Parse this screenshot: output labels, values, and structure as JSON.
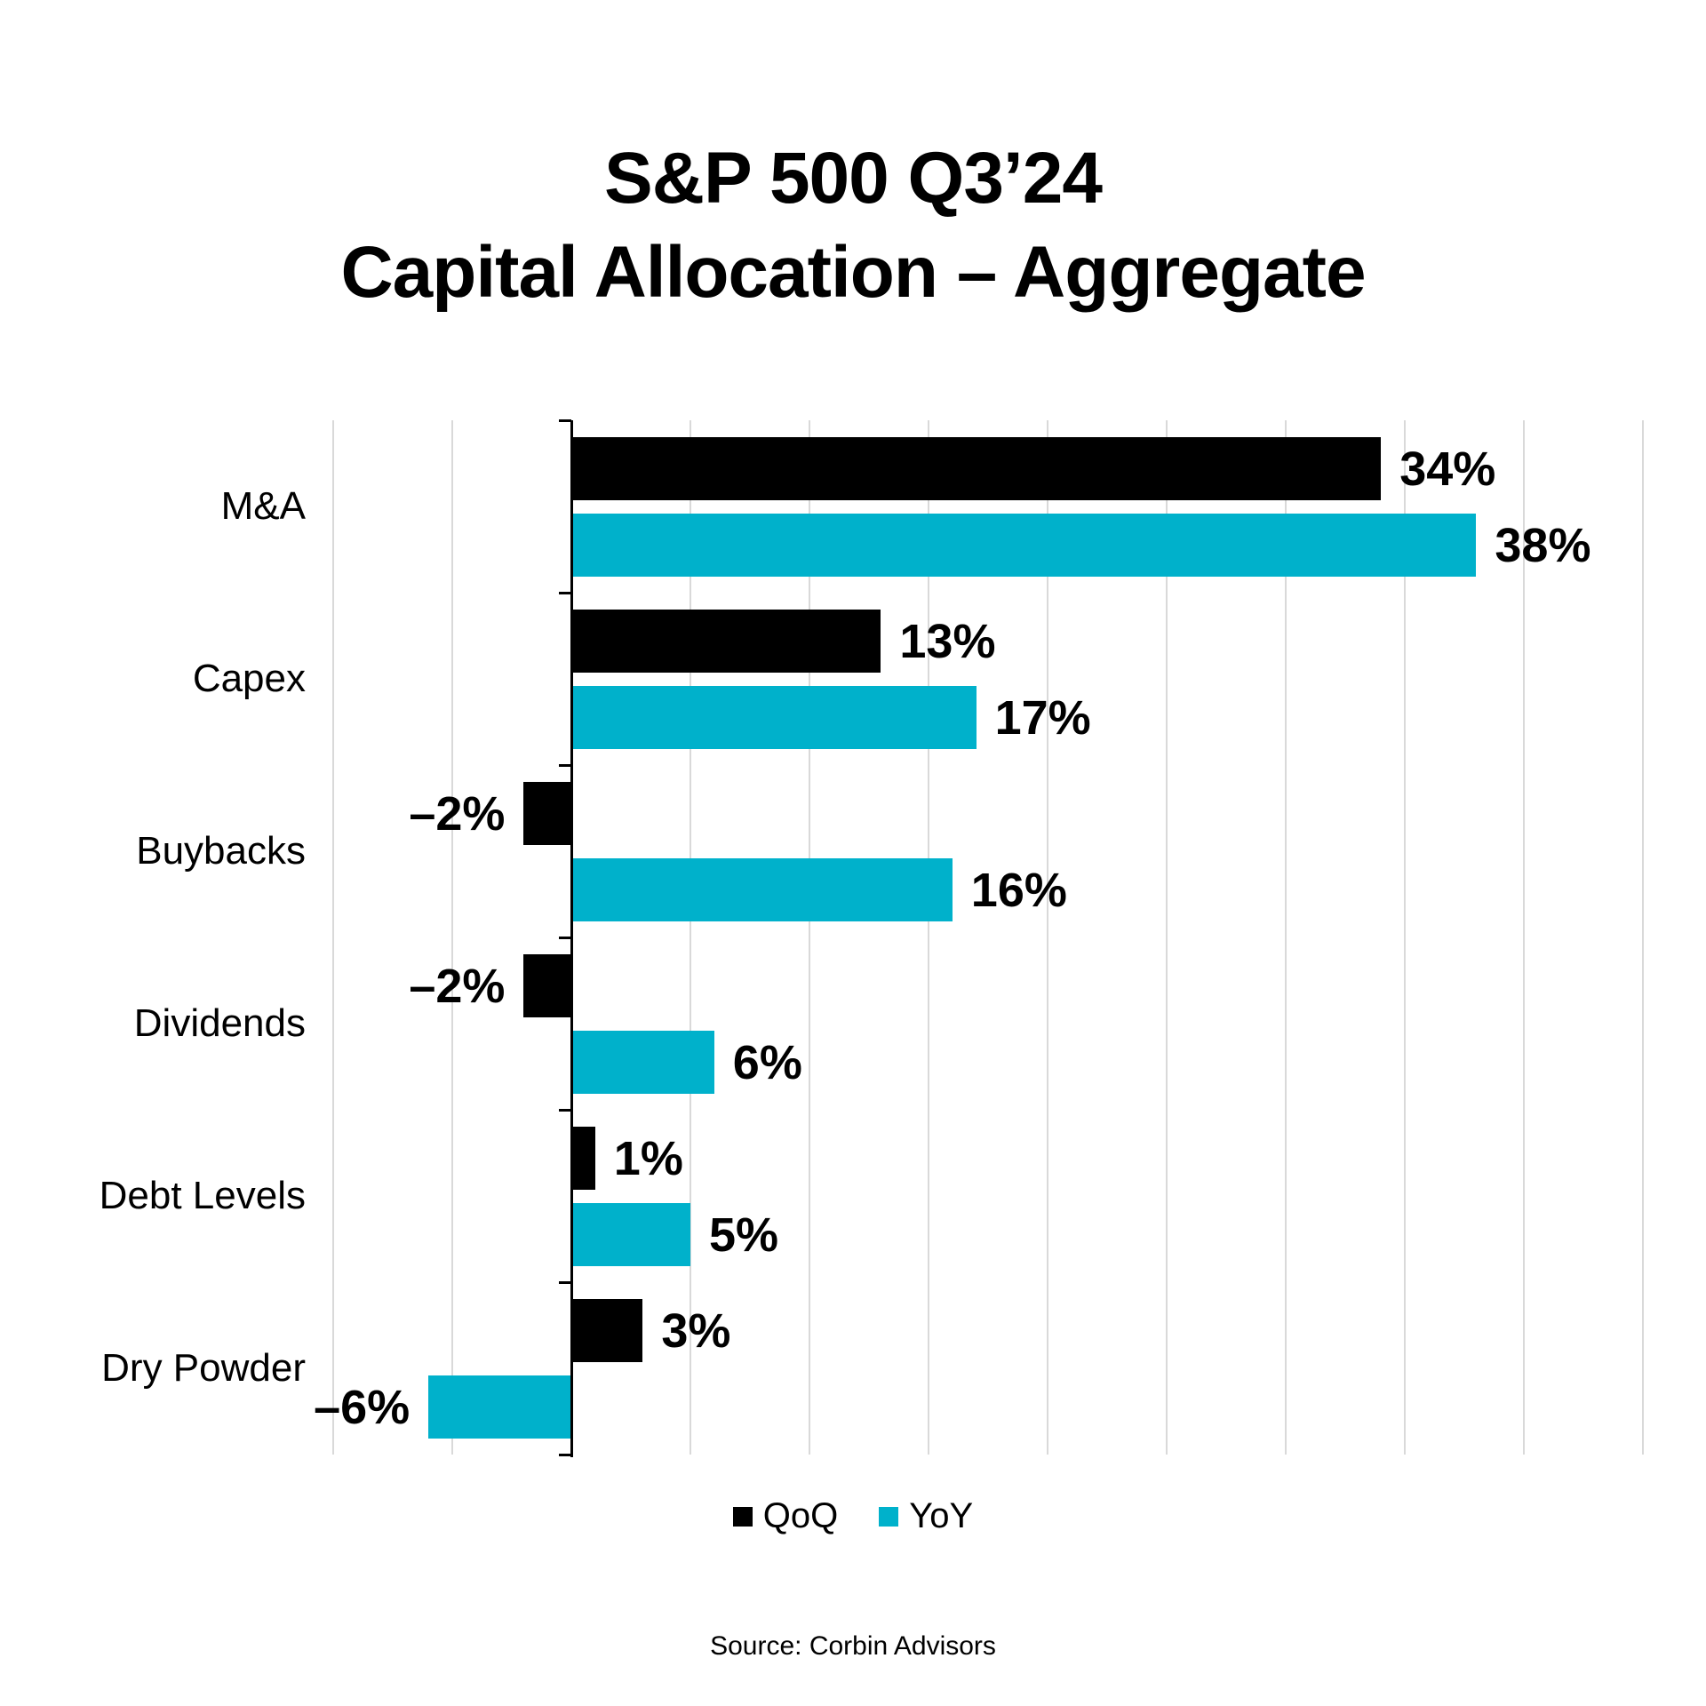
{
  "title": {
    "line1": "S&P 500 Q3’24",
    "line2": "Capital Allocation – Aggregate"
  },
  "source": "Source: Corbin Advisors",
  "legend": [
    {
      "name": "QoQ",
      "color": "#000000"
    },
    {
      "name": "YoY",
      "color": "#00b1cb"
    }
  ],
  "colors": {
    "qoq": "#000000",
    "yoy": "#00b1cb",
    "gridline": "#d9d9d9",
    "axis": "#000000",
    "background": "#ffffff",
    "text": "#000000"
  },
  "chart_data": {
    "type": "bar",
    "orientation": "horizontal",
    "title": "S&P 500 Q3’24 Capital Allocation – Aggregate",
    "categories": [
      "M&A",
      "Capex",
      "Buybacks",
      "Dividends",
      "Debt Levels",
      "Dry Powder"
    ],
    "series": [
      {
        "name": "QoQ",
        "color": "#000000",
        "values": [
          34,
          13,
          -2,
          -2,
          1,
          3
        ],
        "labels": [
          "34%",
          "13%",
          "–2%",
          "–2%",
          "1%",
          "3%"
        ]
      },
      {
        "name": "YoY",
        "color": "#00b1cb",
        "values": [
          38,
          17,
          16,
          6,
          5,
          -6
        ],
        "labels": [
          "38%",
          "17%",
          "16%",
          "6%",
          "5%",
          "–6%"
        ]
      }
    ],
    "xlim": [
      -10,
      45
    ],
    "gridline_step": 5,
    "grid": true,
    "xlabel": "",
    "ylabel": "",
    "legend_position": "bottom"
  }
}
